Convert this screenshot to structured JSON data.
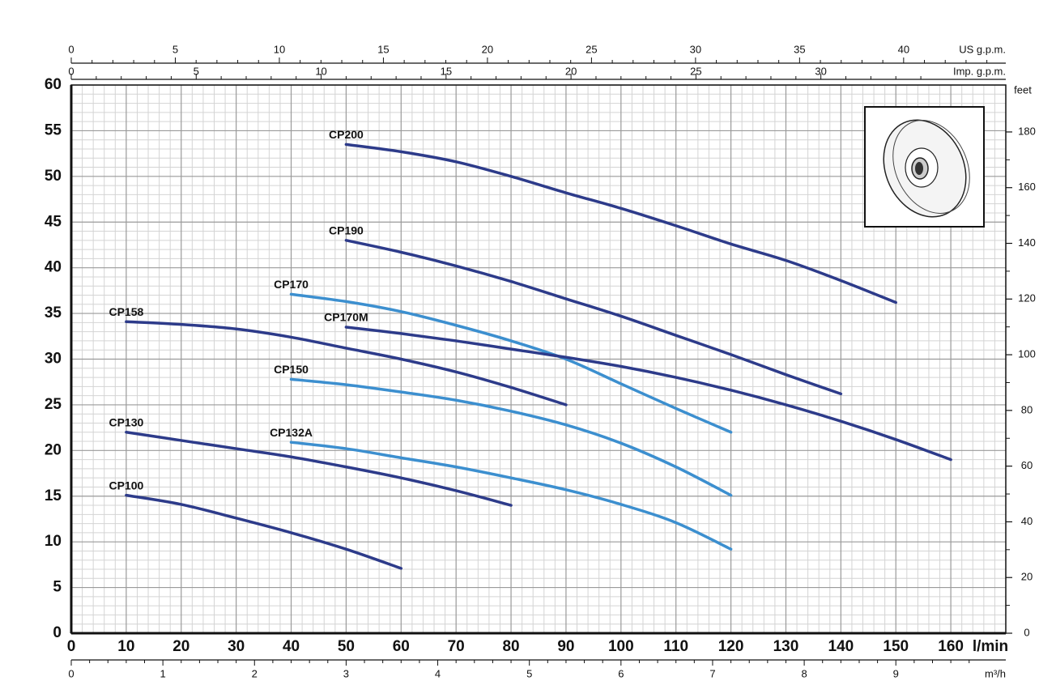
{
  "chart_data": {
    "type": "line",
    "x_label": "l/min",
    "y2_label": "feet",
    "xlim": [
      0,
      170
    ],
    "xticks": [
      0,
      10,
      20,
      30,
      40,
      50,
      60,
      70,
      80,
      90,
      100,
      110,
      120,
      130,
      140,
      150,
      160
    ],
    "ylim": [
      0,
      60
    ],
    "yticks": [
      0,
      5,
      10,
      15,
      20,
      25,
      30,
      35,
      40,
      45,
      50,
      55,
      60
    ],
    "y2lim": [
      0,
      196.85
    ],
    "y2ticks": [
      0,
      20,
      40,
      60,
      80,
      100,
      120,
      140,
      160,
      180
    ],
    "grid": true,
    "top_axes": [
      {
        "label": "US g.p.m.",
        "xlim": [
          0,
          44.91
        ],
        "xticks": [
          0,
          5,
          10,
          15,
          20,
          25,
          30,
          35,
          40
        ]
      },
      {
        "label": "Imp. g.p.m.",
        "xlim": [
          0,
          37.4
        ],
        "xticks": [
          0,
          5,
          10,
          15,
          20,
          25,
          30
        ]
      }
    ],
    "bottom_axis2": {
      "label": "m³/h",
      "xlim": [
        0,
        10.2
      ],
      "xticks": [
        0,
        1,
        2,
        3,
        4,
        5,
        6,
        7,
        8,
        9
      ]
    },
    "series": [
      {
        "name": "CP200",
        "color": "#2d3b8a",
        "x": [
          50,
          60,
          70,
          80,
          90,
          100,
          110,
          120,
          130,
          140,
          150
        ],
        "values": [
          53.5,
          52.7,
          51.6,
          50.0,
          48.2,
          46.5,
          44.6,
          42.6,
          40.8,
          38.6,
          36.2
        ]
      },
      {
        "name": "CP190",
        "color": "#2d3b8a",
        "x": [
          50,
          60,
          70,
          80,
          90,
          100,
          110,
          120,
          130,
          140
        ],
        "values": [
          43.0,
          41.7,
          40.2,
          38.5,
          36.6,
          34.7,
          32.6,
          30.5,
          28.3,
          26.2
        ]
      },
      {
        "name": "CP170",
        "color": "#3c8fcf",
        "x": [
          40,
          50,
          60,
          70,
          80,
          90,
          100,
          110,
          120
        ],
        "values": [
          37.1,
          36.3,
          35.2,
          33.7,
          32.0,
          30.0,
          27.3,
          24.6,
          22.0
        ]
      },
      {
        "name": "CP170M",
        "color": "#2d3b8a",
        "x": [
          50,
          60,
          70,
          80,
          90,
          100,
          110,
          120,
          130,
          140,
          150,
          160
        ],
        "values": [
          33.5,
          32.8,
          32.0,
          31.1,
          30.2,
          29.2,
          28.0,
          26.6,
          25.0,
          23.2,
          21.2,
          19.0
        ]
      },
      {
        "name": "CP158",
        "color": "#2d3b8a",
        "x": [
          10,
          20,
          30,
          40,
          50,
          60,
          70,
          80,
          90
        ],
        "values": [
          34.1,
          33.8,
          33.3,
          32.4,
          31.2,
          30.0,
          28.6,
          26.9,
          25.0
        ]
      },
      {
        "name": "CP150",
        "color": "#3c8fcf",
        "x": [
          40,
          50,
          60,
          70,
          80,
          90,
          100,
          110,
          120
        ],
        "values": [
          27.8,
          27.2,
          26.4,
          25.5,
          24.3,
          22.8,
          20.8,
          18.2,
          15.1
        ]
      },
      {
        "name": "CP130",
        "color": "#2d3b8a",
        "x": [
          10,
          20,
          30,
          40,
          50,
          60,
          70,
          80
        ],
        "values": [
          22.0,
          21.1,
          20.2,
          19.3,
          18.2,
          17.0,
          15.6,
          14.0
        ]
      },
      {
        "name": "CP132A",
        "color": "#3c8fcf",
        "x": [
          40,
          50,
          60,
          70,
          80,
          90,
          100,
          110,
          120
        ],
        "values": [
          20.9,
          20.2,
          19.2,
          18.2,
          17.0,
          15.7,
          14.1,
          12.1,
          9.2
        ]
      },
      {
        "name": "CP100",
        "color": "#2d3b8a",
        "x": [
          10,
          20,
          30,
          40,
          50,
          60
        ],
        "values": [
          15.1,
          14.1,
          12.6,
          11.0,
          9.2,
          7.1
        ]
      }
    ]
  }
}
